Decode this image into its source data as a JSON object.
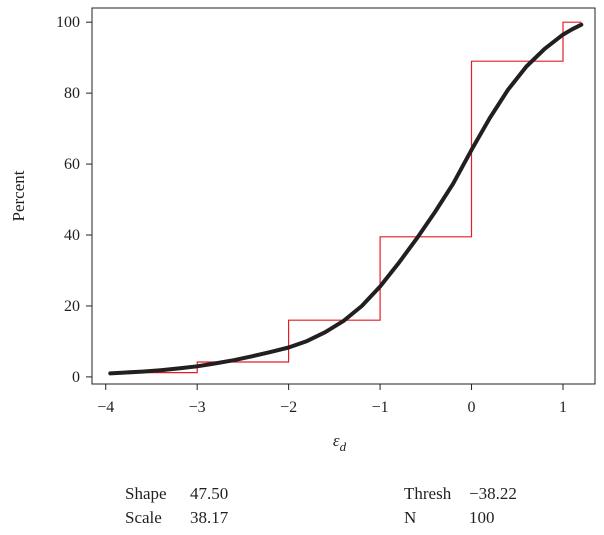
{
  "chart_data": {
    "type": "line",
    "title": "",
    "xlabel": "ε",
    "xlabel_subscript": "d",
    "ylabel": "Percent",
    "xlim": [
      -4.15,
      1.35
    ],
    "ylim": [
      -2,
      104
    ],
    "x_ticks": [
      -4,
      -3,
      -2,
      -1,
      0,
      1
    ],
    "x_tick_labels": [
      "−4",
      "−3",
      "−2",
      "−1",
      "0",
      "1"
    ],
    "y_ticks": [
      0,
      20,
      40,
      60,
      80,
      100
    ],
    "y_tick_labels": [
      "0",
      "20",
      "40",
      "60",
      "80",
      "100"
    ],
    "grid": false,
    "series": [
      {
        "kind": "fitted-cdf",
        "color": "#231f20",
        "x": [
          -3.95,
          -3.8,
          -3.6,
          -3.4,
          -3.2,
          -3.0,
          -2.8,
          -2.6,
          -2.4,
          -2.2,
          -2.0,
          -1.8,
          -1.6,
          -1.4,
          -1.2,
          -1.0,
          -0.8,
          -0.6,
          -0.4,
          -0.2,
          0.0,
          0.2,
          0.4,
          0.6,
          0.8,
          1.0,
          1.1,
          1.2
        ],
        "y": [
          1.0,
          1.2,
          1.5,
          1.9,
          2.4,
          3.0,
          3.8,
          4.7,
          5.8,
          7.0,
          8.3,
          10.1,
          12.6,
          15.8,
          20.0,
          25.5,
          32.0,
          39.0,
          46.5,
          54.5,
          64.0,
          73.0,
          81.0,
          87.5,
          92.5,
          96.5,
          98.0,
          99.3
        ]
      },
      {
        "kind": "empirical-step",
        "color": "#e31e24",
        "x": [
          -3.95,
          -3.0,
          -3.0,
          -2.0,
          -2.0,
          -1.0,
          -1.0,
          0.0,
          0.0,
          1.0,
          1.0,
          1.2
        ],
        "y": [
          1.2,
          1.2,
          4.2,
          4.2,
          16.0,
          16.0,
          39.5,
          39.5,
          89.0,
          89.0,
          100.0,
          100.0
        ]
      }
    ],
    "stats": {
      "left": [
        {
          "label": "Shape",
          "value": "47.50"
        },
        {
          "label": "Scale",
          "value": "38.17"
        }
      ],
      "right": [
        {
          "label": "Thresh",
          "value": "−38.22"
        },
        {
          "label": "N",
          "value": "100"
        }
      ]
    }
  }
}
